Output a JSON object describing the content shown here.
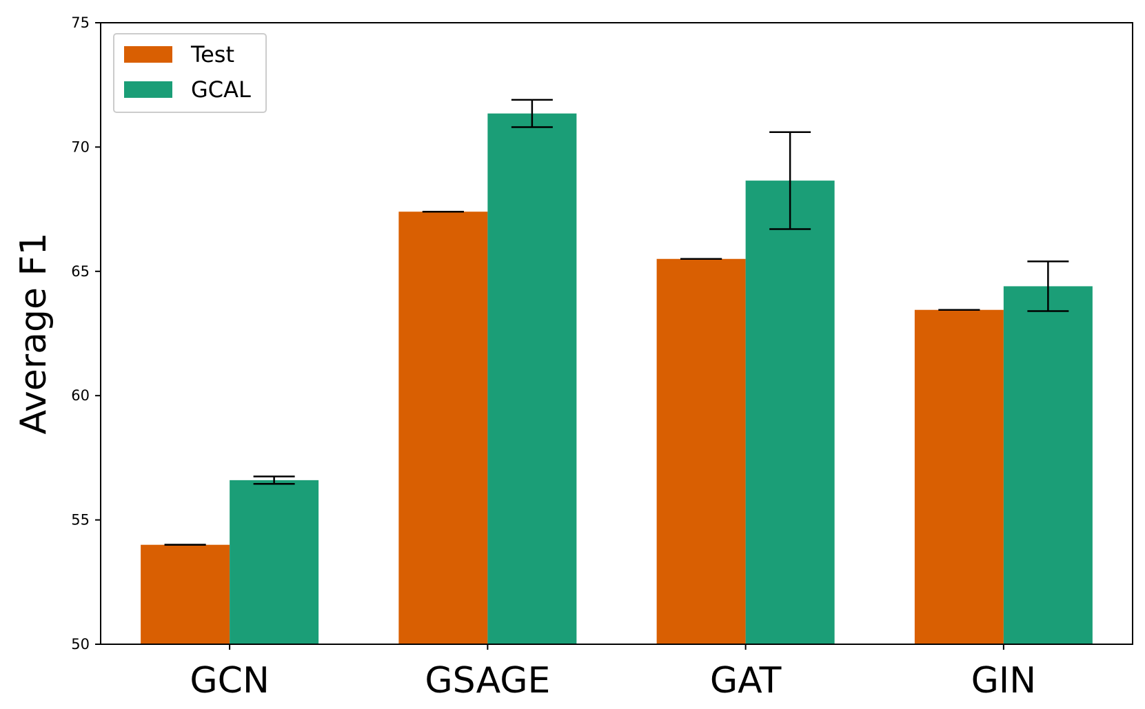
{
  "chart_data": {
    "type": "bar",
    "title": "",
    "xlabel": "",
    "ylabel": "Average F1",
    "categories": [
      "GCN",
      "GSAGE",
      "GAT",
      "GIN"
    ],
    "ylim": [
      50,
      75
    ],
    "yticks": [
      50,
      55,
      60,
      65,
      70,
      75
    ],
    "grid": false,
    "legend_position": "top-left",
    "series": [
      {
        "name": "Test",
        "color": "#d95f02",
        "values": [
          54.0,
          67.4,
          65.5,
          63.45
        ],
        "errors": [
          0.0,
          0.0,
          0.0,
          0.0
        ]
      },
      {
        "name": "GCAL",
        "color": "#1b9e77",
        "values": [
          56.6,
          71.35,
          68.65,
          64.4
        ],
        "errors": [
          0.15,
          0.55,
          1.95,
          1.0
        ]
      }
    ]
  }
}
